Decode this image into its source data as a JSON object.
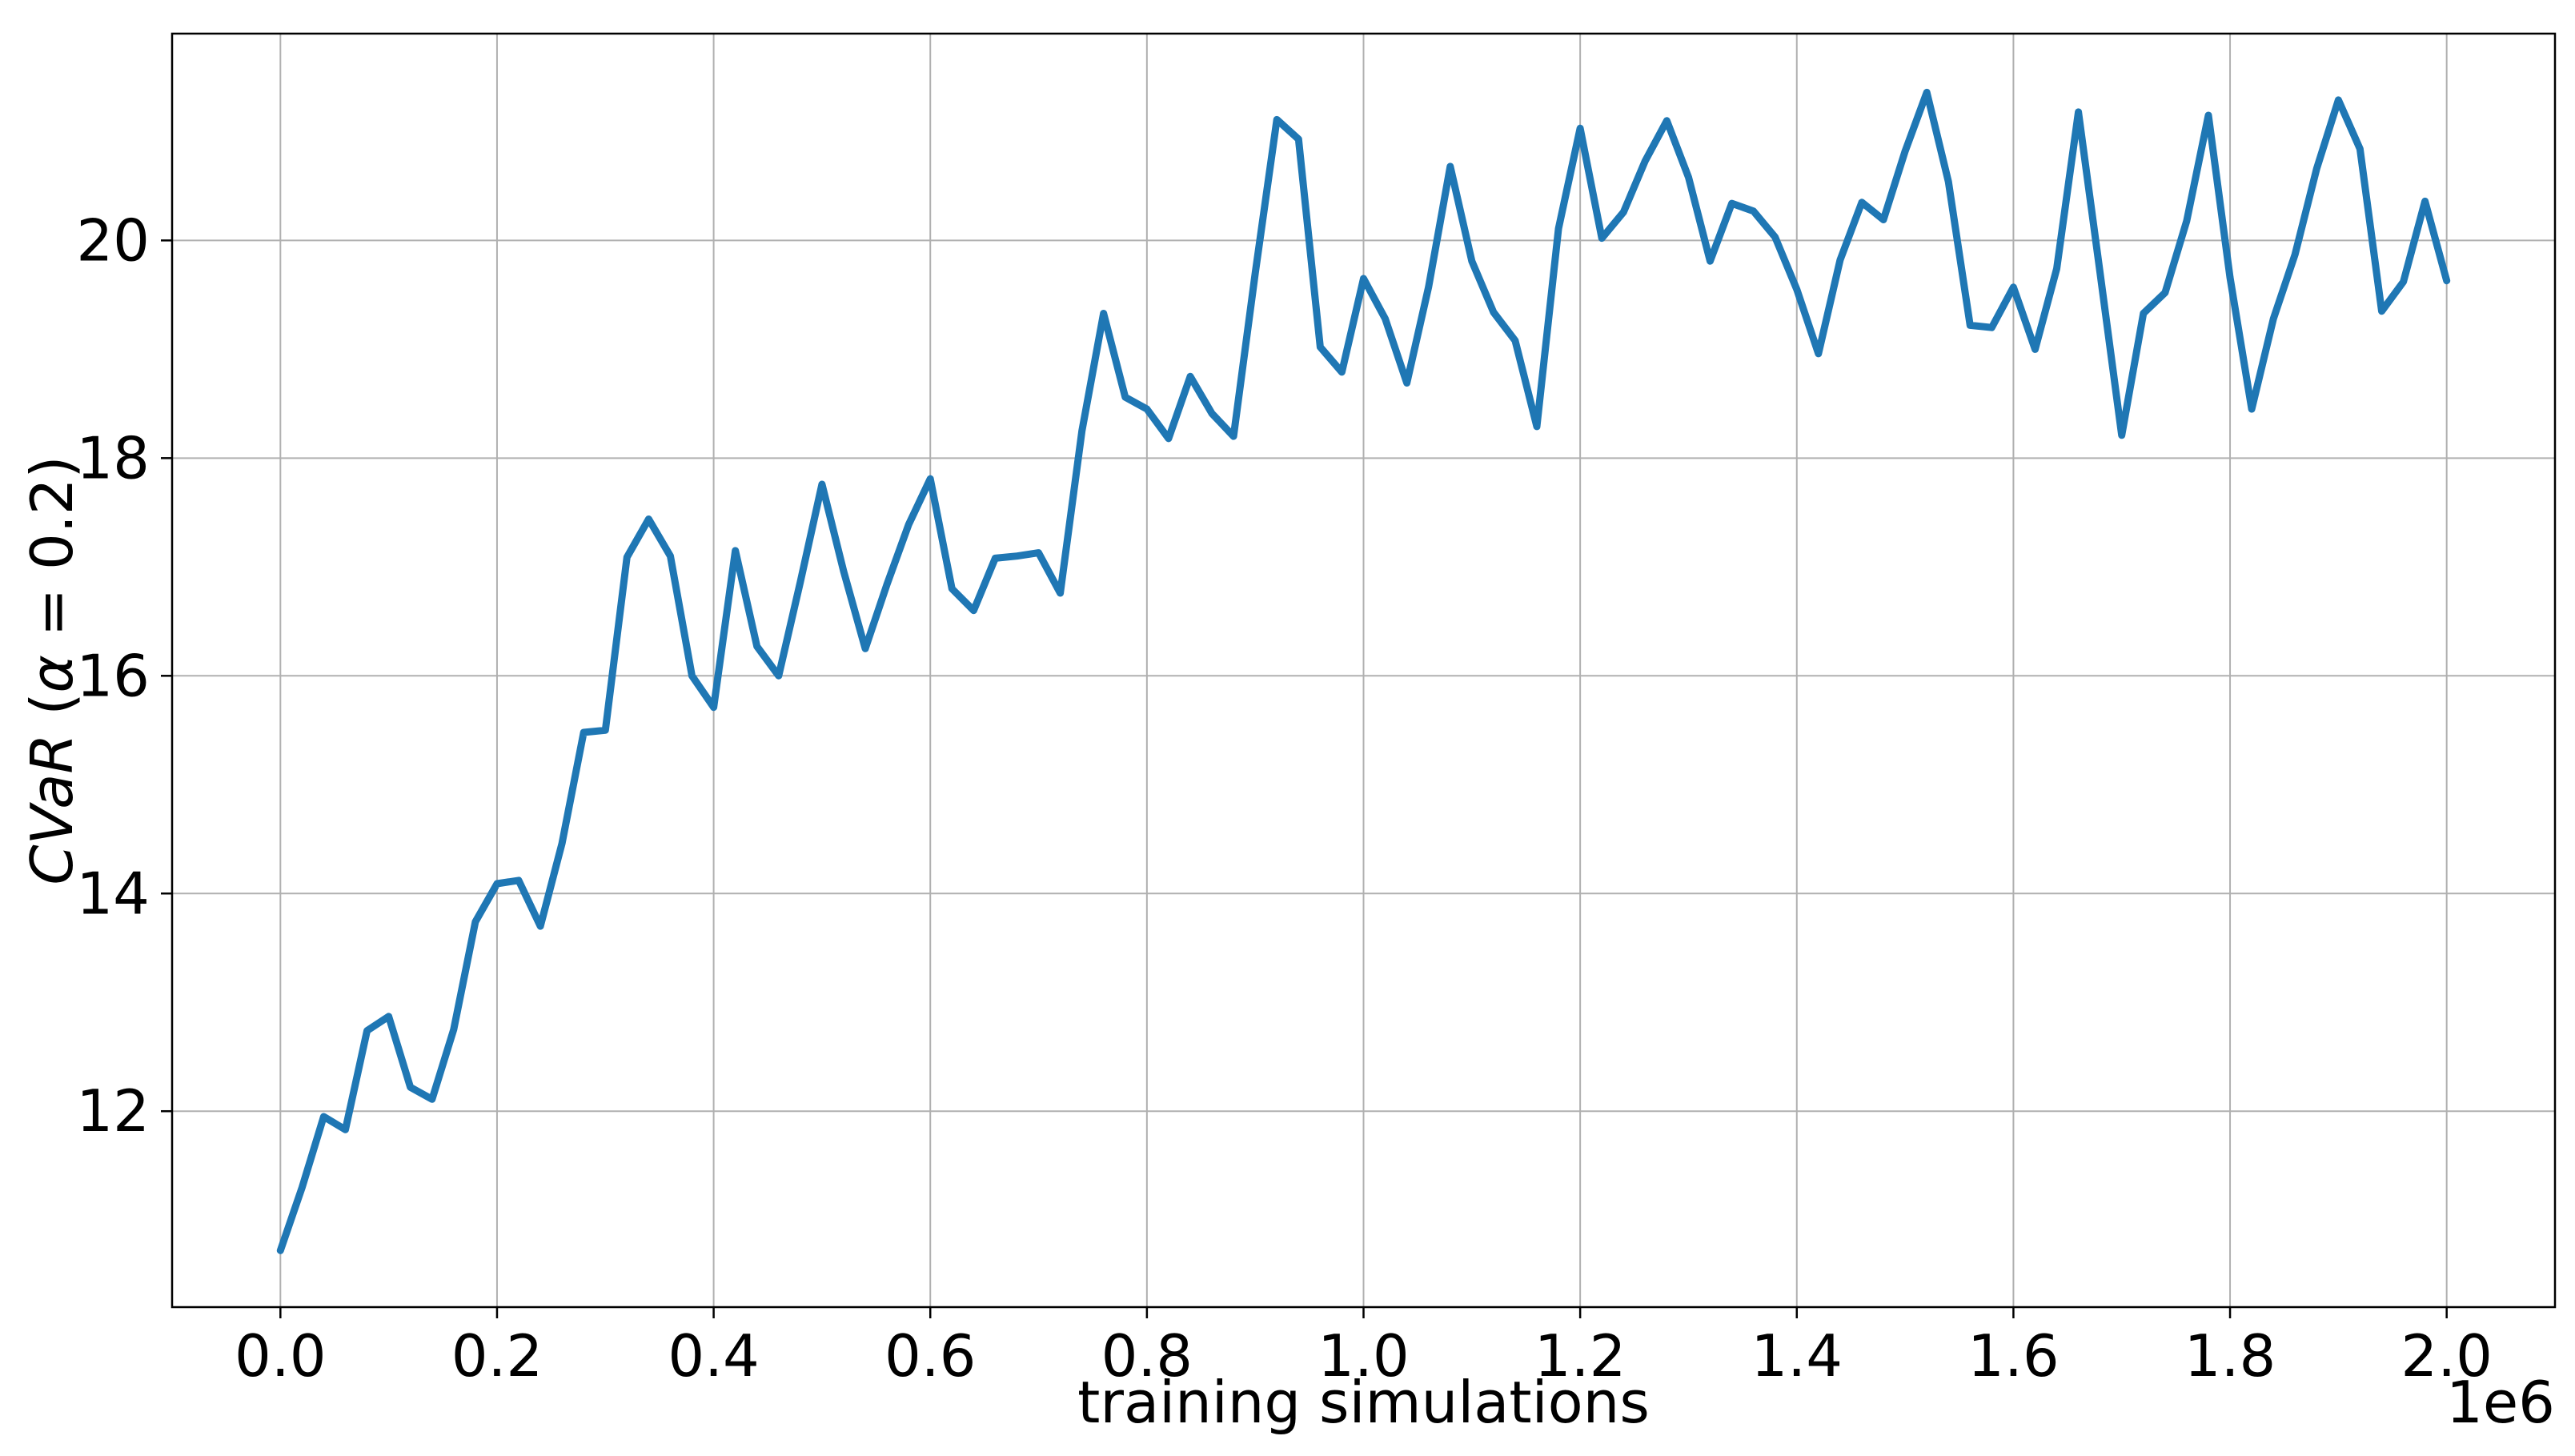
{
  "chart_data": {
    "type": "line",
    "title": "",
    "xlabel": "training simulations",
    "ylabel_parts": [
      "CVaR",
      " (",
      "α",
      " = 0.2)"
    ],
    "x_scale_label": "1e6",
    "xlim": [
      -0.1,
      2.1
    ],
    "ylim": [
      10.2,
      21.9
    ],
    "grid": true,
    "colors": {
      "line": "#1f77b4",
      "grid": "#b0b0b0",
      "axes": "#000000",
      "background": "#ffffff"
    },
    "x_ticks": [
      0.0,
      0.2,
      0.4,
      0.6,
      0.8,
      1.0,
      1.2,
      1.4,
      1.6,
      1.8,
      2.0
    ],
    "x_tick_labels": [
      "0.0",
      "0.2",
      "0.4",
      "0.6",
      "0.8",
      "1.0",
      "1.2",
      "1.4",
      "1.6",
      "1.8",
      "2.0"
    ],
    "y_ticks": [
      12,
      14,
      16,
      18,
      20
    ],
    "y_tick_labels": [
      "12",
      "14",
      "16",
      "18",
      "20"
    ],
    "series": [
      {
        "x": [
          0.0,
          0.02,
          0.04,
          0.06,
          0.08,
          0.1,
          0.12,
          0.14,
          0.16,
          0.18,
          0.2,
          0.22,
          0.24,
          0.26,
          0.28,
          0.3,
          0.32,
          0.34,
          0.36,
          0.38,
          0.4,
          0.42,
          0.44,
          0.46,
          0.48,
          0.5,
          0.52,
          0.54,
          0.56,
          0.58,
          0.6,
          0.62,
          0.64,
          0.66,
          0.68,
          0.7,
          0.72,
          0.74,
          0.76,
          0.78,
          0.8,
          0.82,
          0.84,
          0.86,
          0.88,
          0.9,
          0.92,
          0.94,
          0.96,
          0.98,
          1.0,
          1.02,
          1.04,
          1.06,
          1.08,
          1.1,
          1.12,
          1.14,
          1.16,
          1.18,
          1.2,
          1.22,
          1.24,
          1.26,
          1.28,
          1.3,
          1.32,
          1.34,
          1.36,
          1.38,
          1.4,
          1.42,
          1.44,
          1.46,
          1.48,
          1.5,
          1.52,
          1.54,
          1.56,
          1.58,
          1.6,
          1.62,
          1.64,
          1.66,
          1.68,
          1.7,
          1.72,
          1.74,
          1.76,
          1.78,
          1.8,
          1.82,
          1.84,
          1.86,
          1.88,
          1.9,
          1.92,
          1.94,
          1.96,
          1.98,
          2.0
        ],
        "values": [
          10.72,
          11.3,
          11.95,
          11.83,
          12.74,
          12.87,
          12.22,
          12.11,
          12.75,
          13.74,
          14.09,
          14.12,
          13.7,
          14.46,
          15.48,
          15.5,
          17.09,
          17.44,
          17.1,
          16.0,
          15.71,
          17.15,
          16.27,
          16.0,
          16.86,
          17.76,
          16.96,
          16.25,
          16.84,
          17.39,
          17.81,
          16.8,
          16.6,
          17.08,
          17.1,
          17.13,
          16.76,
          18.25,
          19.33,
          18.56,
          18.45,
          18.18,
          18.75,
          18.41,
          18.2,
          19.7,
          21.11,
          20.93,
          19.02,
          18.79,
          19.65,
          19.28,
          18.69,
          19.57,
          20.68,
          19.81,
          19.34,
          19.08,
          18.29,
          20.11,
          21.03,
          20.02,
          20.26,
          20.73,
          21.1,
          20.58,
          19.81,
          20.34,
          20.27,
          20.03,
          19.55,
          18.96,
          19.82,
          20.35,
          20.19,
          20.82,
          21.36,
          20.54,
          19.22,
          19.2,
          19.57,
          19.0,
          19.74,
          21.18,
          19.7,
          18.21,
          19.33,
          19.52,
          20.18,
          21.15,
          19.66,
          18.45,
          19.28,
          19.87,
          20.66,
          21.29,
          20.84,
          19.35,
          19.62,
          20.36,
          19.63
        ]
      }
    ]
  }
}
